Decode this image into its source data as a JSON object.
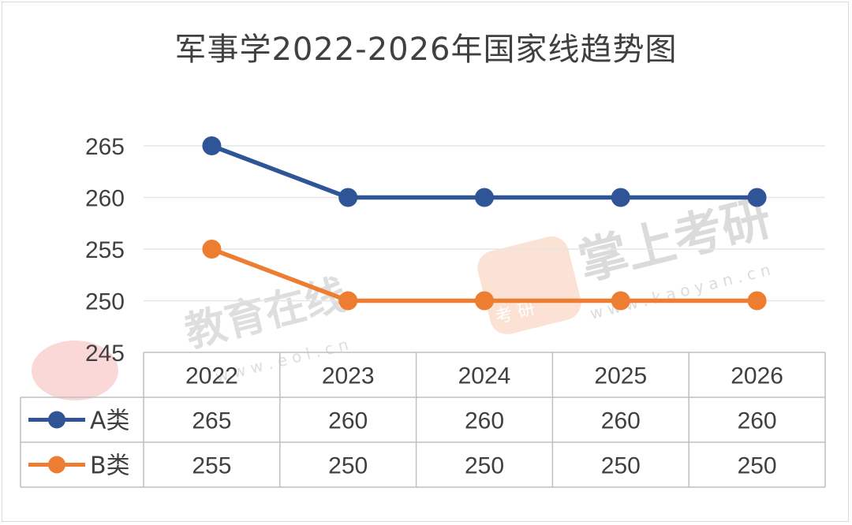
{
  "chart_data": {
    "type": "line",
    "title": "军事学2022-2026年国家线趋势图",
    "categories": [
      "2022",
      "2023",
      "2024",
      "2025",
      "2026"
    ],
    "series": [
      {
        "name": "A类",
        "values": [
          265,
          260,
          260,
          260,
          260
        ],
        "color": "#2f5597"
      },
      {
        "name": "B类",
        "values": [
          255,
          250,
          250,
          250,
          250
        ],
        "color": "#ed7d31"
      }
    ],
    "ylim": [
      245,
      265
    ],
    "yticks": [
      "265",
      "260",
      "255",
      "250",
      "245"
    ],
    "grid": true,
    "data_table": true
  },
  "watermarks": {
    "left_text": "教育在线",
    "left_url": "w w w . e o l . c n",
    "right_text": "掌上考研",
    "right_url": "w w w . k a o y a n . c n",
    "right_badge": "考 研"
  }
}
